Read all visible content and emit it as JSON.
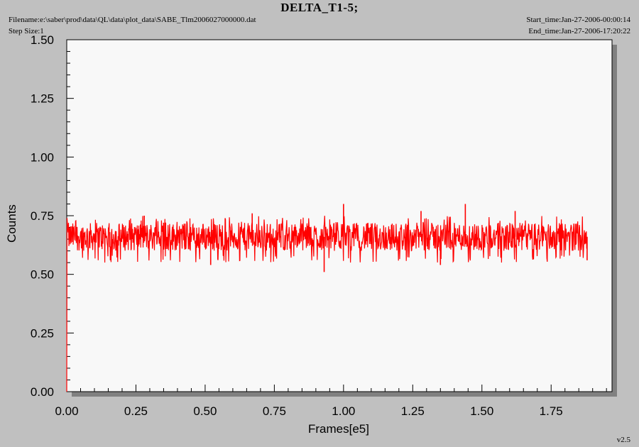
{
  "header": {
    "title": "DELTA_T1-5;",
    "filename": "Filename:e:\\saber\\prod\\data\\QL\\data\\plot_data\\SABE_Tlm2006027000000.dat",
    "step_size": "Step Size:1",
    "start_time": "Start_time:Jan-27-2006-00:00:14",
    "end_time": "End_time:Jan-27-2006-17:20:22",
    "version": "v2.5"
  },
  "chart_data": {
    "type": "line",
    "title": "DELTA_T1-5;",
    "xlabel": "Frames[e5]",
    "ylabel": "Counts",
    "xlim": [
      0,
      1.97
    ],
    "ylim": [
      0,
      1.5
    ],
    "x_ticks": [
      "0.00",
      "0.25",
      "0.50",
      "0.75",
      "1.00",
      "1.25",
      "1.50",
      "1.75"
    ],
    "y_ticks": [
      "0.00",
      "0.25",
      "0.50",
      "0.75",
      "1.00",
      "1.25",
      "1.50"
    ],
    "series": [
      {
        "color": "#ff0000",
        "x_range": [
          0.0,
          1.88
        ],
        "baseline": 0.66,
        "band_low": 0.6,
        "band_high": 0.72,
        "start_values": [
          {
            "x": 0.0,
            "y": 0.0
          },
          {
            "x": 0.001,
            "y": 0.74
          }
        ],
        "spikes": [
          {
            "x": 0.28,
            "y": 0.75
          },
          {
            "x": 0.35,
            "y": 0.72
          },
          {
            "x": 0.52,
            "y": 0.54
          },
          {
            "x": 0.67,
            "y": 0.76
          },
          {
            "x": 0.93,
            "y": 0.51
          },
          {
            "x": 1.0,
            "y": 0.8
          },
          {
            "x": 1.28,
            "y": 0.77
          },
          {
            "x": 1.35,
            "y": 0.54
          },
          {
            "x": 1.44,
            "y": 0.8
          },
          {
            "x": 1.62,
            "y": 0.77
          },
          {
            "x": 1.88,
            "y": 0.56
          }
        ]
      }
    ],
    "grid": false
  }
}
